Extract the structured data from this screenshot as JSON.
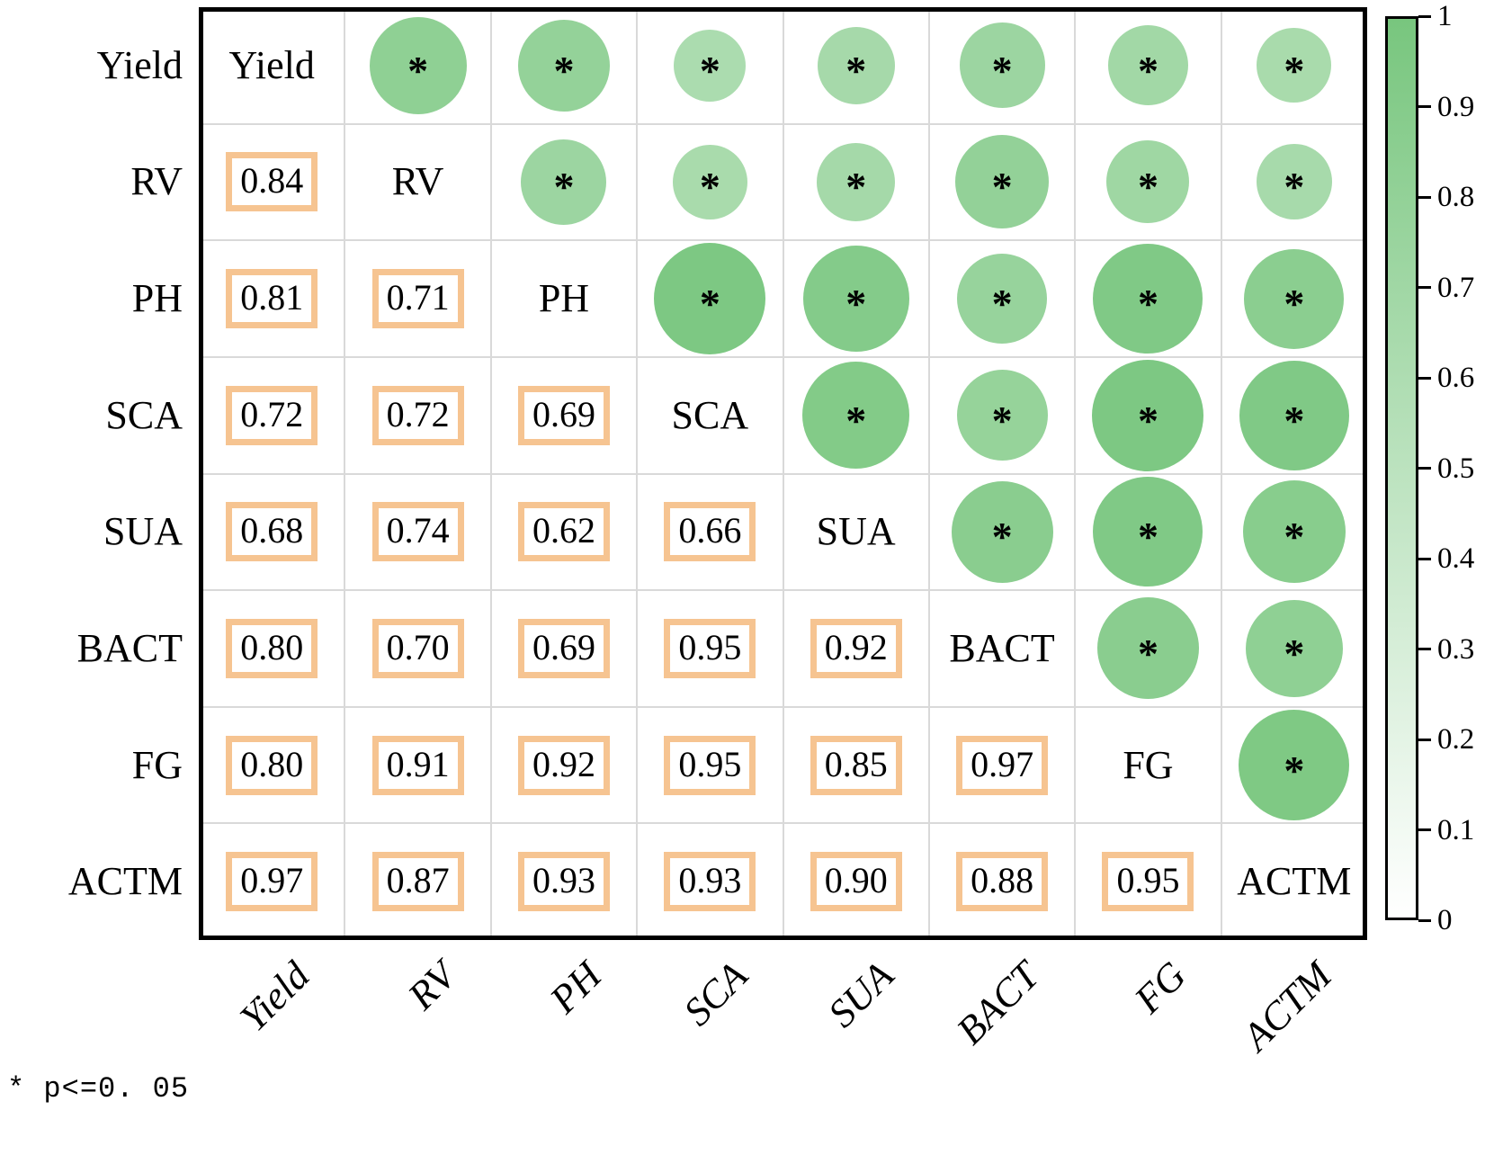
{
  "chart_data": {
    "type": "heatmap",
    "subtype": "correlation-matrix",
    "variables": [
      "Yield",
      "RV",
      "PH",
      "SCA",
      "SUA",
      "BACT",
      "FG",
      "ACTM"
    ],
    "lower_triangle_values": [
      [
        "0.84"
      ],
      [
        "0.81",
        "0.71"
      ],
      [
        "0.72",
        "0.72",
        "0.69"
      ],
      [
        "0.68",
        "0.74",
        "0.62",
        "0.66"
      ],
      [
        "0.80",
        "0.70",
        "0.69",
        "0.95",
        "0.92"
      ],
      [
        "0.80",
        "0.91",
        "0.92",
        "0.95",
        "0.85",
        "0.97"
      ],
      [
        "0.97",
        "0.87",
        "0.93",
        "0.93",
        "0.90",
        "0.88",
        "0.95"
      ]
    ],
    "upper_triangle_circle_values_estimated": [
      [
        0.83,
        0.79,
        0.62,
        0.66,
        0.73,
        0.69,
        0.64
      ],
      [
        0.73,
        0.64,
        0.67,
        0.8,
        0.71,
        0.65
      ],
      [
        0.96,
        0.91,
        0.77,
        0.94,
        0.86
      ],
      [
        0.92,
        0.78,
        0.96,
        0.94
      ],
      [
        0.87,
        0.94,
        0.88
      ],
      [
        0.87,
        0.83
      ],
      [
        0.95
      ]
    ],
    "significance_marker": "*",
    "footnote": "* p<=0. 05",
    "colorbar": {
      "min": 0,
      "max": 1,
      "tick_labels": [
        "1",
        "0.9",
        "0.8",
        "0.7",
        "0.6",
        "0.5",
        "0.4",
        "0.3",
        "0.2",
        "0.1",
        "0"
      ],
      "position": "right"
    },
    "colors": {
      "green_max": "#78c67e",
      "green_min": "#ffffff",
      "number_box_border": "#f6c491",
      "gridline": "#d9d9d9",
      "frame": "#000000"
    },
    "grid": true
  }
}
